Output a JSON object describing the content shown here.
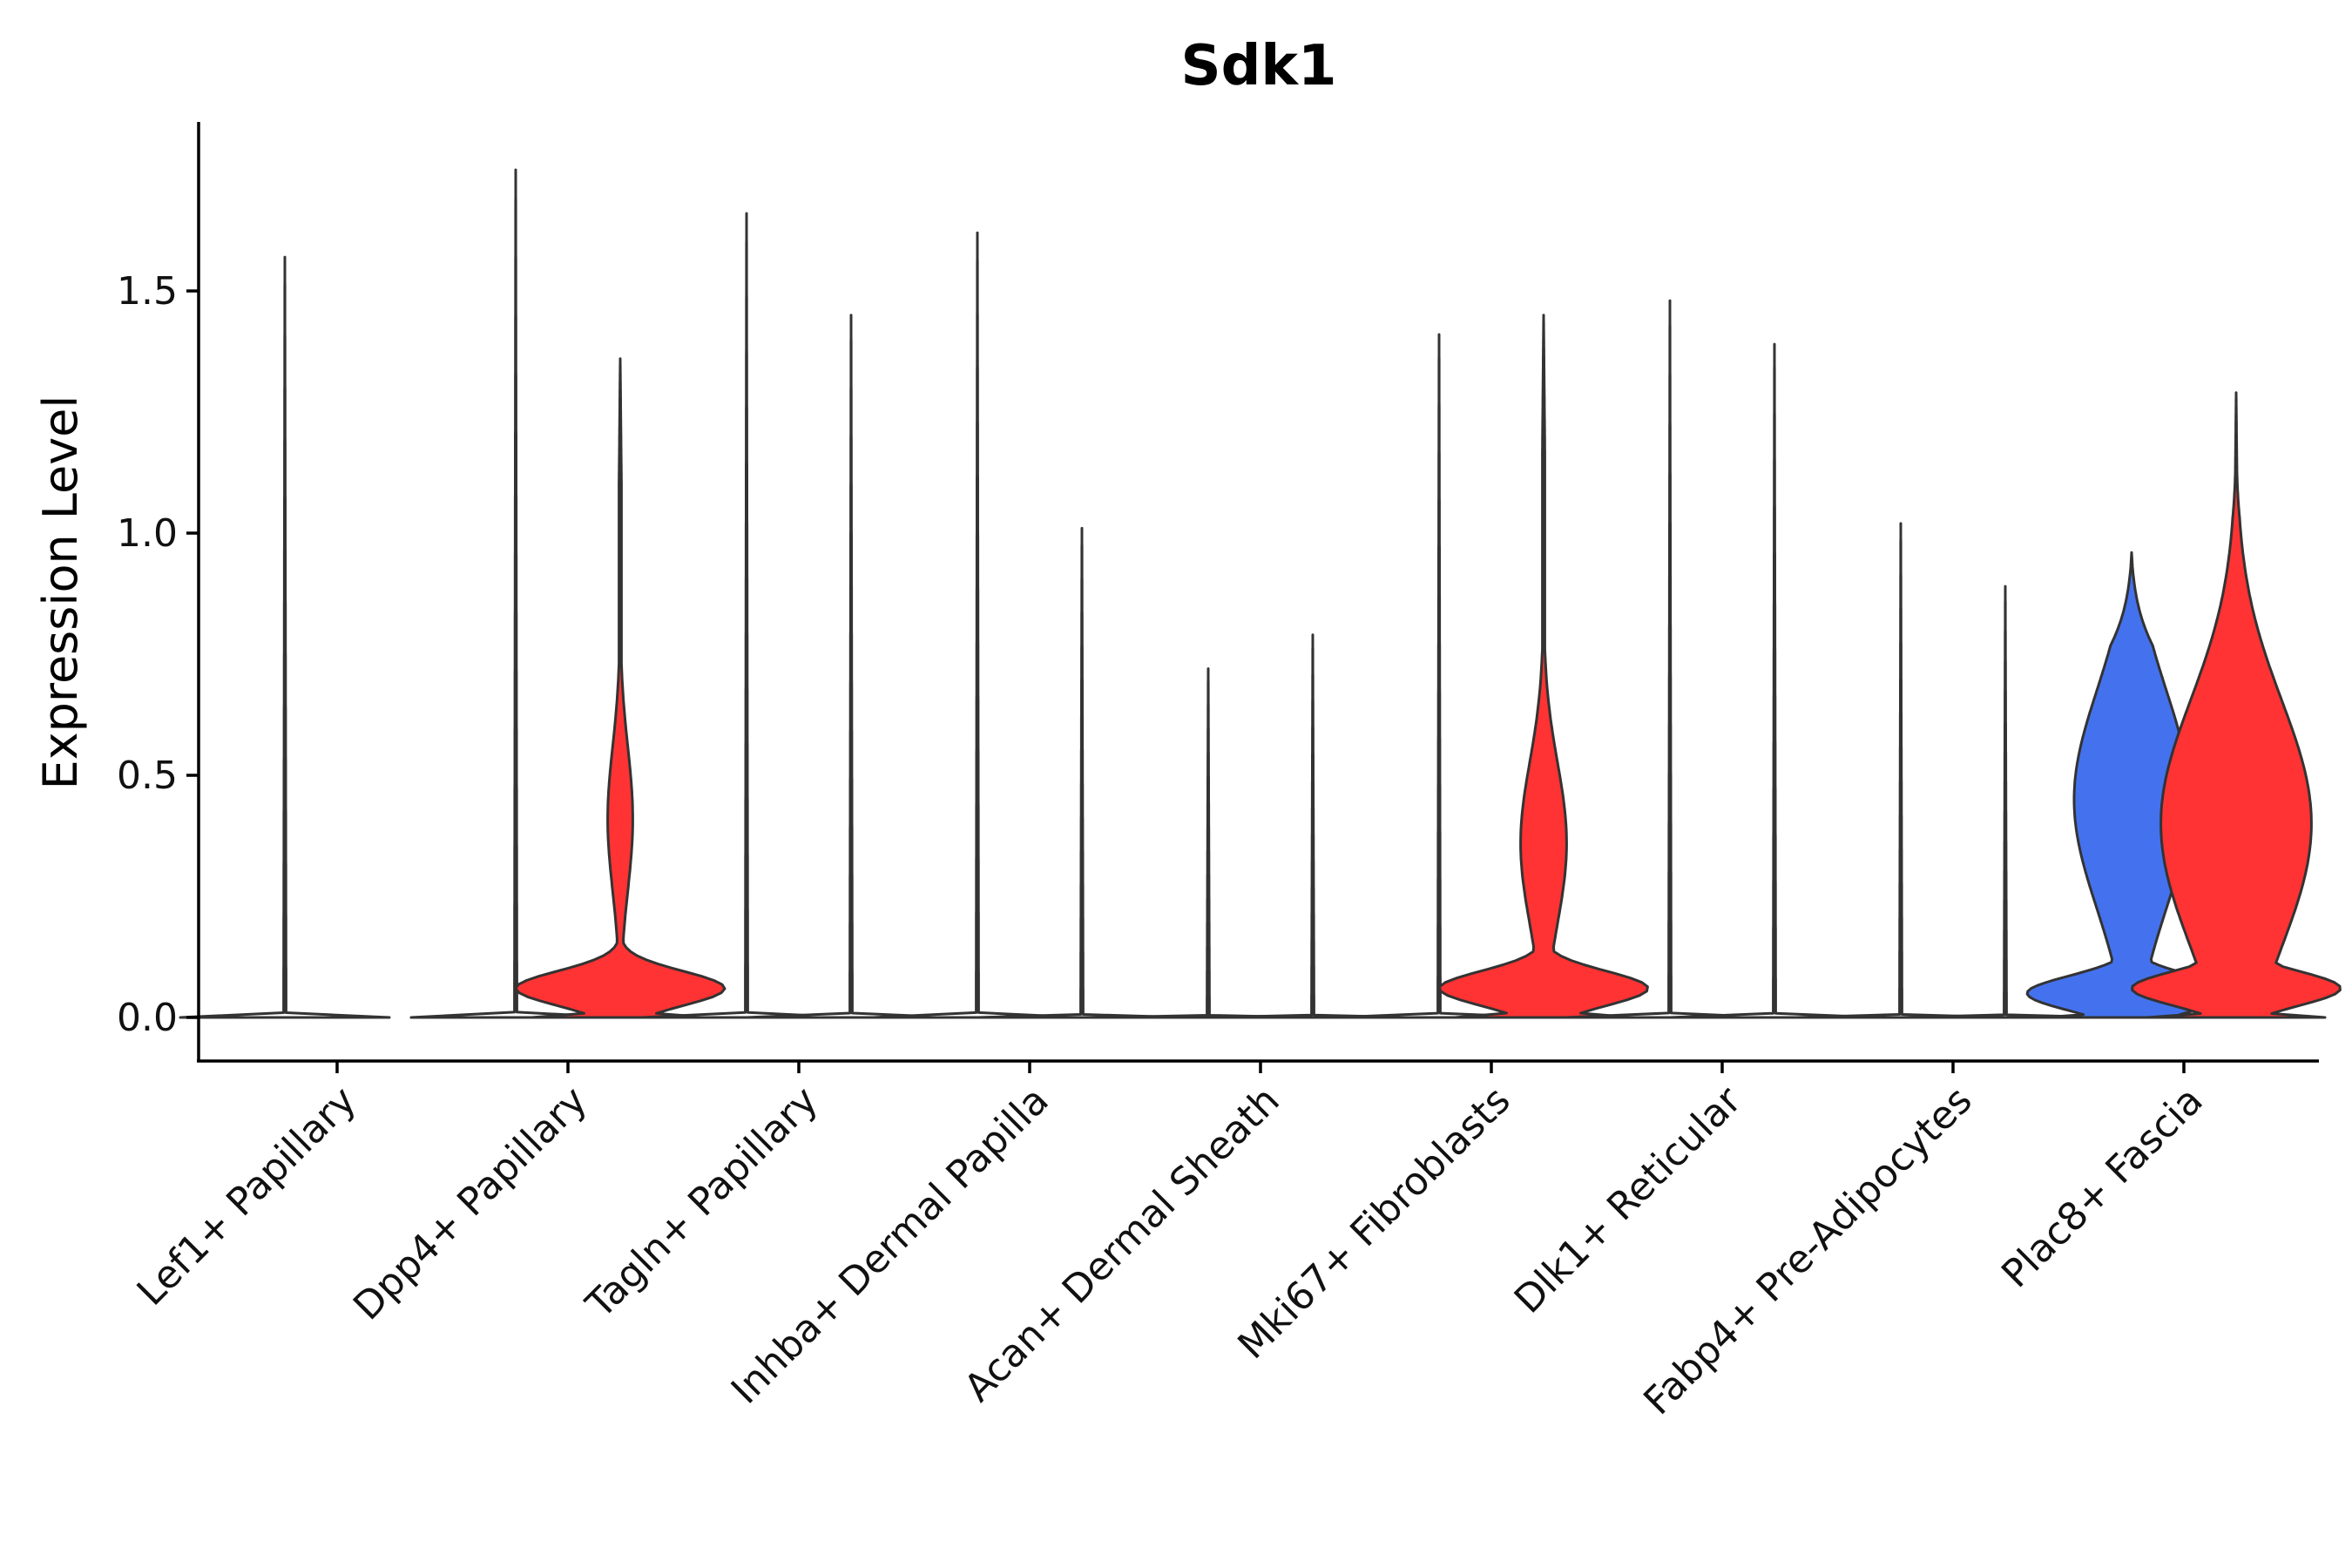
{
  "chart_data": {
    "type": "violin",
    "title": "Sdk1",
    "xlabel": "",
    "ylabel": "Expression Level",
    "ylim": [
      -0.09,
      1.85
    ],
    "yticks": [
      0.0,
      0.5,
      1.0,
      1.5
    ],
    "ytick_labels": [
      "0.0",
      "0.5",
      "1.0",
      "1.5"
    ],
    "grid": false,
    "legend": "none",
    "colors": {
      "high": "#FF3333",
      "low": "#4472EE",
      "zero": "#FFFFFF",
      "outline": "#333333"
    },
    "categories": [
      "Lef1+ Papillary",
      "Dpp4+ Papillary",
      "Tagln+ Papillary",
      "Inhba+ Dermal Papilla",
      "Acan+ Dermal Sheath",
      "Mki67+ Fibroblasts",
      "Dlk1+ Reticular",
      "Fabp4+ Pre-Adipocytes",
      "Plac8+ Fascia"
    ],
    "violins": [
      {
        "category_index": 0,
        "group": 0,
        "max": 1.57,
        "fill": "zero",
        "shape": "flat"
      },
      {
        "category_index": 0,
        "group": 1,
        "max": 0.0,
        "fill": "zero",
        "shape": "none"
      },
      {
        "category_index": 1,
        "group": 0,
        "max": 1.75,
        "fill": "zero",
        "shape": "flat"
      },
      {
        "category_index": 1,
        "group": 1,
        "max": 1.36,
        "fill": "high",
        "shape": "spread",
        "mode_low": 0.06,
        "mode_high": 0.41,
        "upper_width": 0.12
      },
      {
        "category_index": 2,
        "group": 0,
        "max": 1.66,
        "fill": "zero",
        "shape": "flat"
      },
      {
        "category_index": 2,
        "group": 1,
        "max": 1.45,
        "fill": "zero",
        "shape": "flat"
      },
      {
        "category_index": 3,
        "group": 0,
        "max": 1.62,
        "fill": "zero",
        "shape": "flat"
      },
      {
        "category_index": 3,
        "group": 1,
        "max": 1.01,
        "fill": "zero",
        "shape": "flat"
      },
      {
        "category_index": 4,
        "group": 0,
        "max": 0.72,
        "fill": "zero",
        "shape": "flat"
      },
      {
        "category_index": 4,
        "group": 1,
        "max": 0.79,
        "fill": "zero",
        "shape": "flat"
      },
      {
        "category_index": 5,
        "group": 0,
        "max": 1.41,
        "fill": "zero",
        "shape": "flat"
      },
      {
        "category_index": 5,
        "group": 1,
        "max": 1.45,
        "fill": "high",
        "shape": "spread",
        "mode_low": 0.06,
        "mode_high": 0.36,
        "upper_width": 0.22
      },
      {
        "category_index": 6,
        "group": 0,
        "max": 1.48,
        "fill": "zero",
        "shape": "flat"
      },
      {
        "category_index": 6,
        "group": 1,
        "max": 1.39,
        "fill": "zero",
        "shape": "flat"
      },
      {
        "category_index": 7,
        "group": 0,
        "max": 1.02,
        "fill": "zero",
        "shape": "flat"
      },
      {
        "category_index": 7,
        "group": 1,
        "max": 0.89,
        "fill": "zero",
        "shape": "flat"
      },
      {
        "category_index": 8,
        "group": 0,
        "max": 0.96,
        "fill": "low",
        "shape": "spread",
        "mode_low": 0.05,
        "mode_high": 0.45,
        "upper_width": 0.55
      },
      {
        "category_index": 8,
        "group": 1,
        "max": 1.29,
        "fill": "high",
        "shape": "spread",
        "mode_low": 0.06,
        "mode_high": 0.4,
        "upper_width": 0.72
      }
    ]
  }
}
